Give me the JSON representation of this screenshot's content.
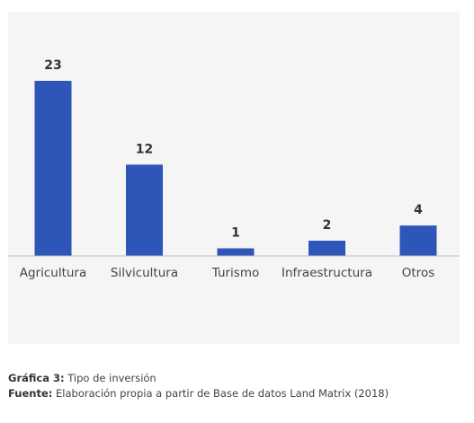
{
  "chart_data": {
    "type": "bar",
    "categories": [
      "Agricultura",
      "Silvicultura",
      "Turismo",
      "Infraestructura",
      "Otros"
    ],
    "values": [
      23,
      12,
      1,
      2,
      4
    ],
    "title": "",
    "xlabel": "",
    "ylabel": "",
    "ylim": [
      0,
      23
    ],
    "grid": false,
    "legend": "none",
    "bar_color": "#2e56b8",
    "background_color": "#f5f5f5"
  },
  "caption": {
    "figure_label": "Gráfica 3:",
    "figure_text": " Tipo de inversión",
    "source_label": "Fuente:",
    "source_text": " Elaboración propia a partir de Base de datos Land Matrix (2018)"
  }
}
